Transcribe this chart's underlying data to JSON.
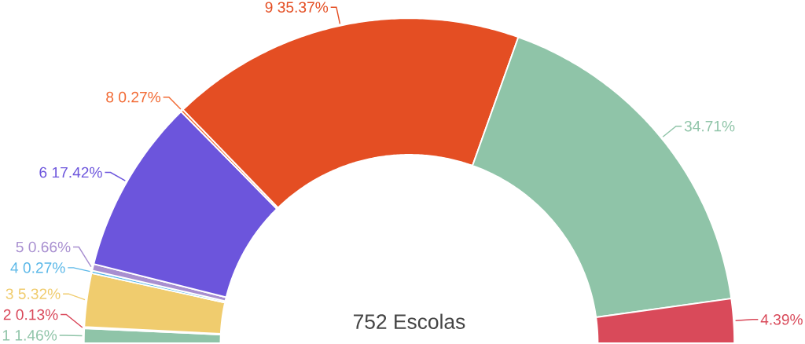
{
  "chart_data": {
    "type": "donut",
    "title": "752 Escolas",
    "categories": [
      "1",
      "2",
      "3",
      "4",
      "5",
      "6",
      "8",
      "9",
      null,
      null
    ],
    "values": [
      1.46,
      0.13,
      5.32,
      0.27,
      0.66,
      17.42,
      0.27,
      35.37,
      34.71,
      4.39
    ],
    "value_labels": [
      "1.46%",
      "0.13%",
      "5.32%",
      "0.27%",
      "0.66%",
      "17.42%",
      "0.27%",
      "35.37%",
      "34.71%",
      "4.39%"
    ],
    "colors": [
      "#8fc4a8",
      "#d9485a",
      "#f0cc6e",
      "#5bb8e8",
      "#a88fd0",
      "#6c55dc",
      "#f26b35",
      "#e44e23",
      "#8fc4a8",
      "#d94a5a"
    ]
  }
}
